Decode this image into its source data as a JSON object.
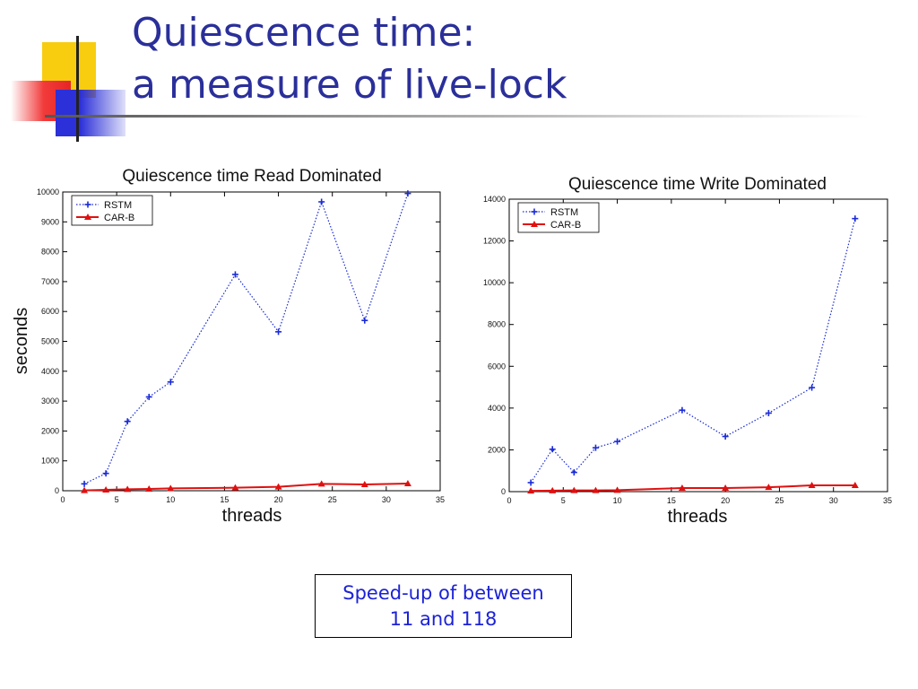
{
  "slide": {
    "title_line1": "Quiescence time:",
    "title_line2": "a measure of live-lock",
    "callout_line1": "Speed-up of between",
    "callout_line2": "11 and 118"
  },
  "colors": {
    "title": "#2a2f9a",
    "rstm": "#1a2bd8",
    "carb": "#e01010",
    "callout": "#1c22d6"
  },
  "chart_data": [
    {
      "type": "line",
      "title": "Quiescence time Read Dominated",
      "xlabel": "threads",
      "ylabel": "seconds",
      "xlim": [
        0,
        35
      ],
      "ylim": [
        0,
        10000
      ],
      "xticks": [
        0,
        5,
        10,
        15,
        20,
        25,
        30,
        35
      ],
      "yticks": [
        0,
        1000,
        2000,
        3000,
        4000,
        5000,
        6000,
        7000,
        8000,
        9000,
        10000
      ],
      "legend": "top-left",
      "grid": false,
      "series": [
        {
          "name": "RSTM",
          "marker": "plus",
          "style": "dotted",
          "x": [
            2,
            4,
            6,
            8,
            10,
            16,
            20,
            24,
            28,
            32
          ],
          "y": [
            230,
            580,
            2320,
            3140,
            3640,
            7240,
            5320,
            9670,
            5700,
            9950
          ]
        },
        {
          "name": "CAR-B",
          "marker": "triangle",
          "style": "solid",
          "x": [
            2,
            4,
            6,
            8,
            10,
            16,
            20,
            24,
            28,
            32
          ],
          "y": [
            10,
            30,
            50,
            60,
            80,
            100,
            130,
            230,
            210,
            240
          ]
        }
      ]
    },
    {
      "type": "line",
      "title": "Quiescence time Write Dominated",
      "xlabel": "threads",
      "ylabel": "",
      "xlim": [
        0,
        35
      ],
      "ylim": [
        0,
        14000
      ],
      "xticks": [
        0,
        5,
        10,
        15,
        20,
        25,
        30,
        35
      ],
      "yticks": [
        0,
        2000,
        4000,
        6000,
        8000,
        10000,
        12000,
        14000
      ],
      "ytick_labels": [
        "0",
        "2000",
        "4000",
        "6000",
        "8000",
        "10000",
        "12000",
        "14000"
      ],
      "legend": "top-left",
      "grid": false,
      "series": [
        {
          "name": "RSTM",
          "marker": "plus",
          "style": "dotted",
          "x": [
            2,
            4,
            6,
            8,
            10,
            16,
            20,
            24,
            28,
            32
          ],
          "y": [
            430,
            2030,
            920,
            2100,
            2400,
            3900,
            2640,
            3760,
            4980,
            13070
          ]
        },
        {
          "name": "CAR-B",
          "marker": "triangle",
          "style": "solid",
          "x": [
            2,
            4,
            6,
            8,
            10,
            16,
            20,
            24,
            28,
            32
          ],
          "y": [
            40,
            50,
            60,
            60,
            70,
            170,
            170,
            210,
            300,
            300
          ]
        }
      ]
    }
  ]
}
